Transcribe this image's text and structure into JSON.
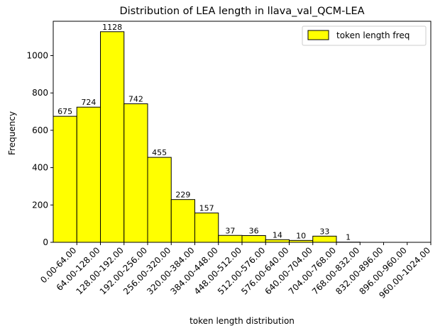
{
  "chart_data": {
    "type": "bar",
    "title": "Distribution of LEA length in llava_val_QCM-LEA",
    "xlabel": "token length distribution",
    "ylabel": "Frequency",
    "categories": [
      "0.00-64.00",
      "64.00-128.00",
      "128.00-192.00",
      "192.00-256.00",
      "256.00-320.00",
      "320.00-384.00",
      "384.00-448.00",
      "448.00-512.00",
      "512.00-576.00",
      "576.00-640.00",
      "640.00-704.00",
      "704.00-768.00",
      "768.00-832.00",
      "832.00-896.00",
      "896.00-960.00",
      "960.00-1024.00"
    ],
    "series": [
      {
        "name": "token length freq",
        "values": [
          675,
          724,
          1128,
          742,
          455,
          229,
          157,
          37,
          36,
          14,
          10,
          33,
          1,
          0,
          0,
          0
        ]
      }
    ],
    "data_labels": [
      "675",
      "724",
      "1128",
      "742",
      "455",
      "229",
      "157",
      "37",
      "36",
      "14",
      "10",
      "33",
      "1",
      "",
      "",
      ""
    ],
    "ylim": [
      0,
      1184
    ],
    "yticks": [
      0,
      200,
      400,
      600,
      800,
      1000
    ],
    "grid": false,
    "legend_position": "top-right",
    "colors": {
      "bar_fill": "#ffff00",
      "bar_edge": "#000000"
    }
  }
}
